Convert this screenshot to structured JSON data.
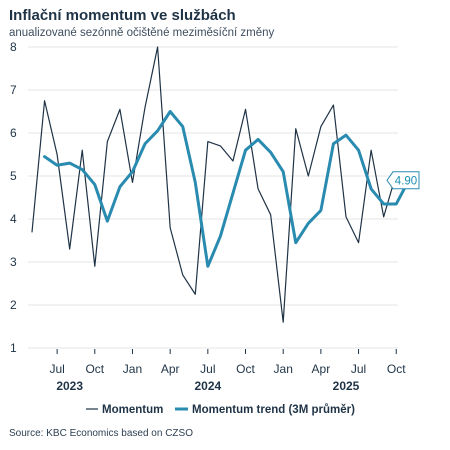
{
  "header": {
    "title": "Inflační momentum ve službách",
    "subtitle": "anualizované sezónně očištěné meziměsíční změny"
  },
  "source": "Source: KBC Economics based on CZSO",
  "colors": {
    "momentum": "#1f3346",
    "trend": "#2a8bb0",
    "grid": "#e6e6e6"
  },
  "chart_data": {
    "type": "line",
    "title": "Inflační momentum ve službách",
    "subtitle": "anualizované sezónně očištěné meziměsíční změny",
    "x": [
      "2023-05",
      "2023-06",
      "2023-07",
      "2023-08",
      "2023-09",
      "2023-10",
      "2023-11",
      "2023-12",
      "2024-01",
      "2024-02",
      "2024-03",
      "2024-04",
      "2024-05",
      "2024-06",
      "2024-07",
      "2024-08",
      "2024-09",
      "2024-10",
      "2024-11",
      "2024-12",
      "2025-01",
      "2025-02",
      "2025-03",
      "2025-04",
      "2025-05",
      "2025-06",
      "2025-07",
      "2025-08",
      "2025-09",
      "2025-10",
      "2025-11"
    ],
    "x_ticks": [
      {
        "label": "Jul",
        "x": "2023-07"
      },
      {
        "label": "Oct",
        "x": "2023-10"
      },
      {
        "label": "Jan",
        "x": "2024-01"
      },
      {
        "label": "Apr",
        "x": "2024-04"
      },
      {
        "label": "Jul",
        "x": "2024-07"
      },
      {
        "label": "Oct",
        "x": "2024-10"
      },
      {
        "label": "Jan",
        "x": "2025-01"
      },
      {
        "label": "Apr",
        "x": "2025-04"
      },
      {
        "label": "Jul",
        "x": "2025-07"
      },
      {
        "label": "Oct",
        "x": "2025-10"
      }
    ],
    "year_labels": [
      {
        "label": "2023",
        "x": "2023-08"
      },
      {
        "label": "2024",
        "x": "2024-07"
      },
      {
        "label": "2025",
        "x": "2025-06"
      }
    ],
    "series": [
      {
        "name": "Momentum",
        "values": [
          3.7,
          6.75,
          5.5,
          3.3,
          5.6,
          2.9,
          5.8,
          6.55,
          4.85,
          6.6,
          8.0,
          3.8,
          2.7,
          2.25,
          5.8,
          5.7,
          5.35,
          6.55,
          4.7,
          4.1,
          1.6,
          6.1,
          5.0,
          6.15,
          6.65,
          4.05,
          3.45,
          5.6,
          4.05,
          5.05,
          null
        ]
      },
      {
        "name": "Momentum trend (3M průměr)",
        "values": [
          null,
          5.45,
          5.25,
          5.3,
          5.15,
          4.8,
          3.95,
          4.75,
          5.1,
          5.75,
          6.05,
          6.5,
          6.15,
          4.85,
          2.9,
          3.6,
          4.6,
          5.6,
          5.85,
          5.55,
          5.1,
          3.45,
          3.9,
          4.2,
          5.75,
          5.95,
          5.6,
          4.7,
          4.35,
          4.35,
          4.9
        ]
      }
    ],
    "callout": {
      "label": "4.90",
      "series": "Momentum trend (3M průměr)",
      "value": 4.9
    },
    "y_ticks": [
      1,
      2,
      3,
      4,
      5,
      6,
      7,
      8
    ],
    "ylim": [
      1,
      8
    ],
    "grid": true,
    "legend": "bottom"
  }
}
